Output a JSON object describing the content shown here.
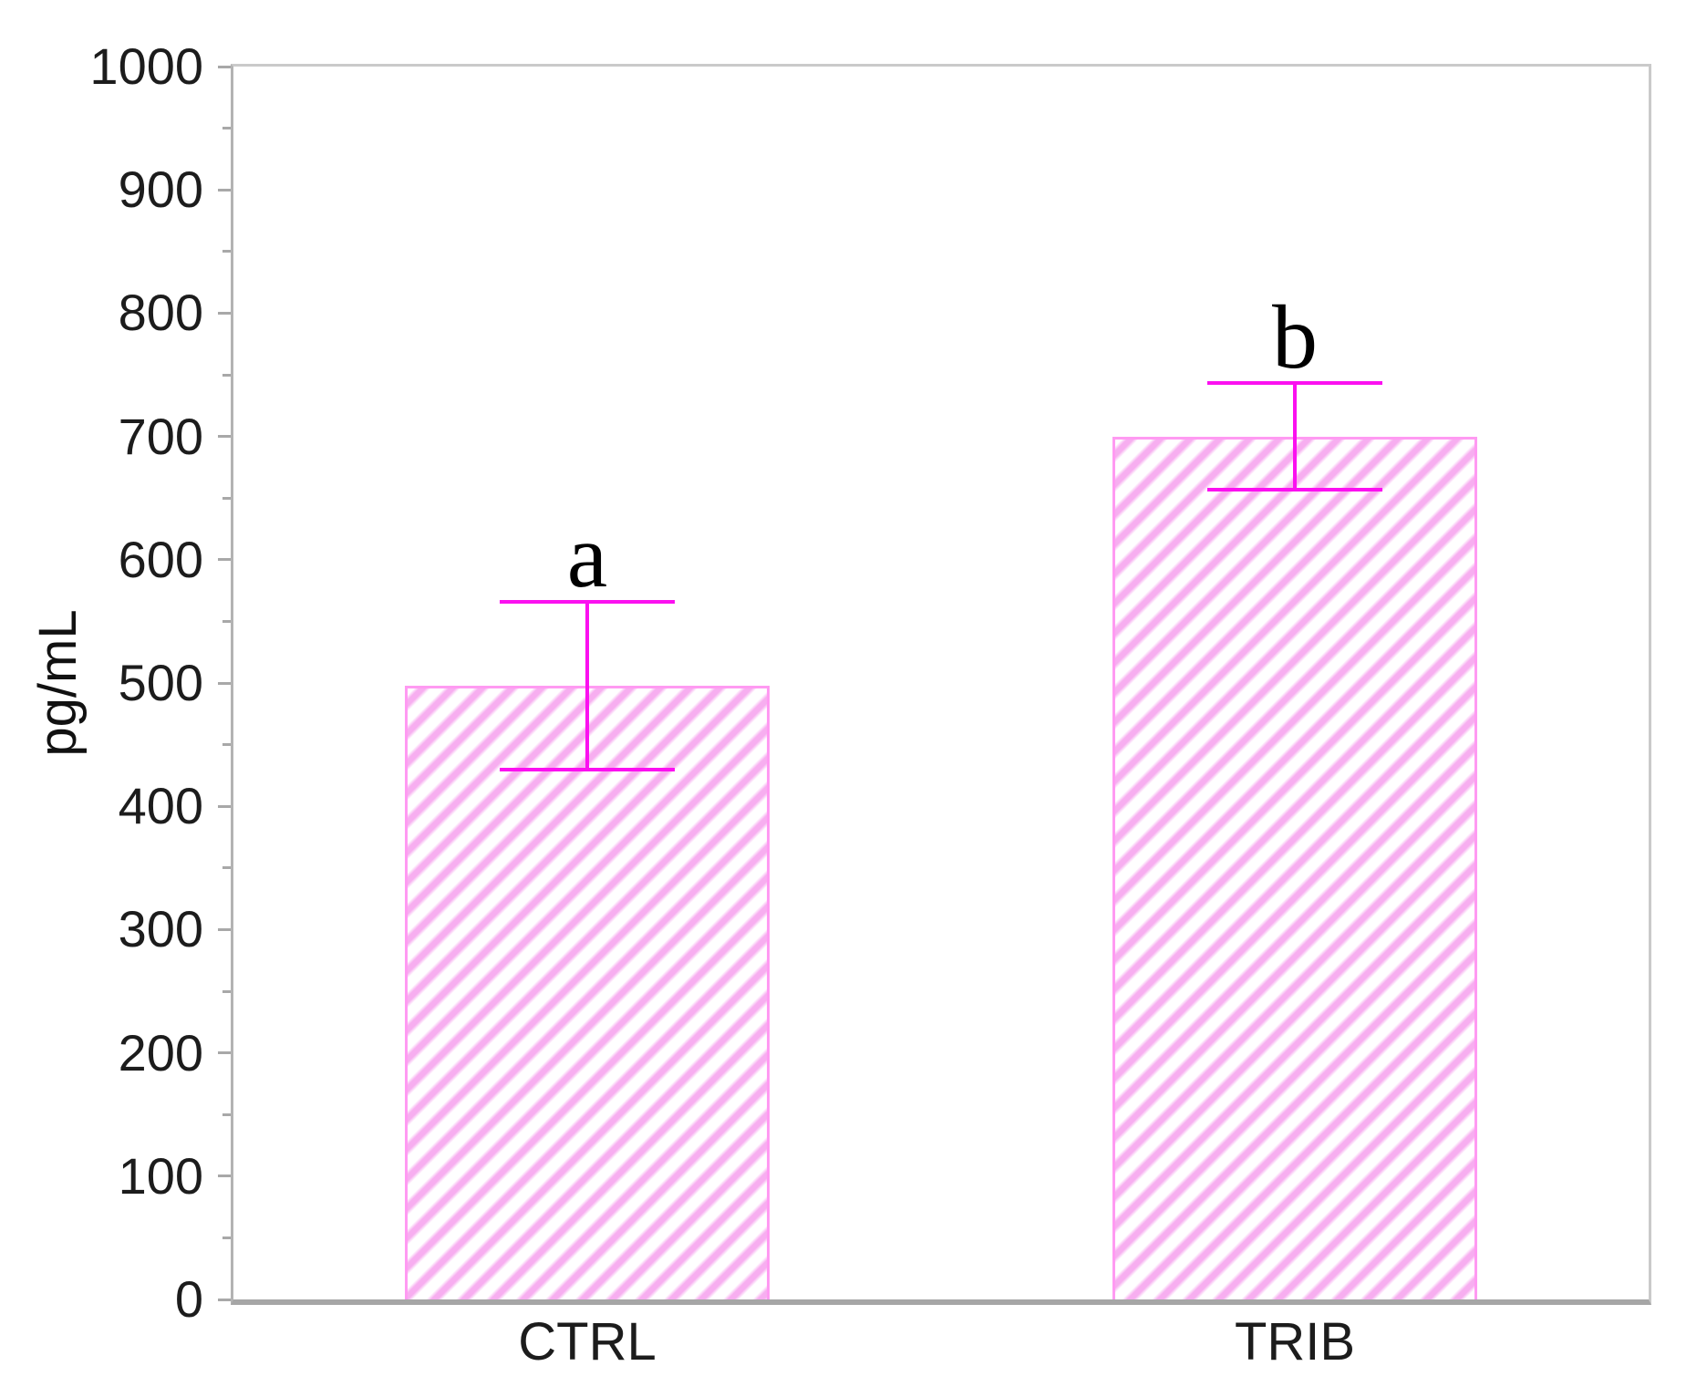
{
  "chart_data": {
    "type": "bar",
    "title": "",
    "xlabel": "",
    "ylabel": "pg/mL",
    "categories": [
      "CTRL",
      "TRIB"
    ],
    "values": [
      498,
      700
    ],
    "error_bars": {
      "type": "symmetric",
      "values": [
        68,
        43
      ]
    },
    "error_ranges": [
      [
        430,
        566
      ],
      [
        657,
        743
      ]
    ],
    "significance_letters": [
      "a",
      "b"
    ],
    "ylim": [
      0,
      1000
    ],
    "ytick_step": 100,
    "ytick_labels": [
      "0",
      "100",
      "200",
      "300",
      "400",
      "500",
      "600",
      "700",
      "800",
      "900",
      "1000"
    ],
    "minor_tick_step": 50,
    "grid": false,
    "legend": null,
    "styles": {
      "hatch_color": "#f7aef0",
      "bar_edge_color": "#ff9af2",
      "error_bar_color": "#fb10f0",
      "axis_line_color": "#b3b3b3",
      "baseline_color": "#a6a6a6",
      "plot_border_color": "#cacaca",
      "tick_color": "#a8a8a8",
      "text_color": "#1c1c1c"
    }
  }
}
